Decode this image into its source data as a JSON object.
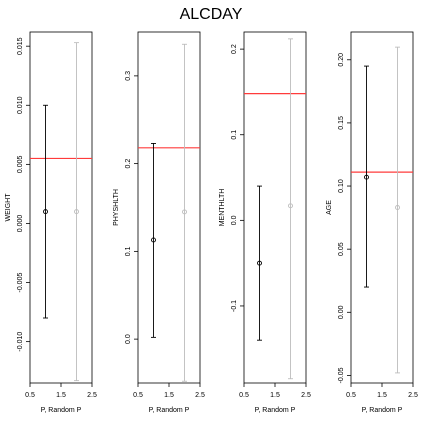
{
  "title": "ALCDAY",
  "colors": {
    "observed": "#000000",
    "random": "#bdbdbd",
    "reference": "#ff3b3b",
    "frame": "#000000"
  },
  "chart_data": [
    {
      "type": "scatter",
      "ylabel": "WEIGHT",
      "xlabel": "P, Random P",
      "xlim": [
        0.5,
        2.5
      ],
      "xticks": [
        "0.5",
        "1.5",
        "2.5"
      ],
      "ylim": [
        -0.0135,
        0.0162
      ],
      "yticks": [
        {
          "v": -0.01,
          "label": "-0.010"
        },
        {
          "v": -0.005,
          "label": "-0.005"
        },
        {
          "v": 0.0,
          "label": "0.000"
        },
        {
          "v": 0.005,
          "label": "0.005"
        },
        {
          "v": 0.01,
          "label": "0.010"
        },
        {
          "v": 0.015,
          "label": "0.015"
        }
      ],
      "reference_line": 0.0055,
      "series": [
        {
          "x": 1,
          "point": 0.001,
          "low": -0.008,
          "high": 0.01
        },
        {
          "x": 2,
          "point": 0.001,
          "low": -0.0133,
          "high": 0.0153
        }
      ]
    },
    {
      "type": "scatter",
      "ylabel": "PHYSHLTH",
      "xlabel": "P, Random P",
      "xlim": [
        0.5,
        2.5
      ],
      "xticks": [
        "0.5",
        "1.5",
        "2.5"
      ],
      "ylim": [
        -0.05,
        0.35
      ],
      "yticks": [
        {
          "v": 0.0,
          "label": "0.0"
        },
        {
          "v": 0.1,
          "label": "0.1"
        },
        {
          "v": 0.2,
          "label": "0.2"
        },
        {
          "v": 0.3,
          "label": "0.3"
        }
      ],
      "reference_line": 0.218,
      "series": [
        {
          "x": 1,
          "point": 0.113,
          "low": 0.002,
          "high": 0.223
        },
        {
          "x": 2,
          "point": 0.145,
          "low": -0.048,
          "high": 0.336
        }
      ]
    },
    {
      "type": "scatter",
      "ylabel": "MENTHLTH",
      "xlabel": "P, Random P",
      "xlim": [
        0.5,
        2.5
      ],
      "xticks": [
        "0.5",
        "1.5",
        "2.5"
      ],
      "ylim": [
        -0.19,
        0.22
      ],
      "yticks": [
        {
          "v": -0.1,
          "label": "-0.1"
        },
        {
          "v": 0.0,
          "label": "0.0"
        },
        {
          "v": 0.1,
          "label": "0.1"
        },
        {
          "v": 0.2,
          "label": "0.2"
        }
      ],
      "reference_line": 0.148,
      "series": [
        {
          "x": 1,
          "point": -0.05,
          "low": -0.14,
          "high": 0.04
        },
        {
          "x": 2,
          "point": 0.017,
          "low": -0.185,
          "high": 0.212
        }
      ]
    },
    {
      "type": "scatter",
      "ylabel": "AGE",
      "xlabel": "P, Random P",
      "xlim": [
        0.5,
        2.5
      ],
      "xticks": [
        "0.5",
        "1.5",
        "2.5"
      ],
      "ylim": [
        -0.056,
        0.222
      ],
      "yticks": [
        {
          "v": -0.05,
          "label": "-0.05"
        },
        {
          "v": 0.0,
          "label": "0.00"
        },
        {
          "v": 0.05,
          "label": "0.05"
        },
        {
          "v": 0.1,
          "label": "0.10"
        },
        {
          "v": 0.15,
          "label": "0.15"
        },
        {
          "v": 0.2,
          "label": "0.20"
        }
      ],
      "reference_line": 0.111,
      "series": [
        {
          "x": 1,
          "point": 0.107,
          "low": 0.02,
          "high": 0.195
        },
        {
          "x": 2,
          "point": 0.083,
          "low": -0.048,
          "high": 0.21
        }
      ]
    }
  ]
}
